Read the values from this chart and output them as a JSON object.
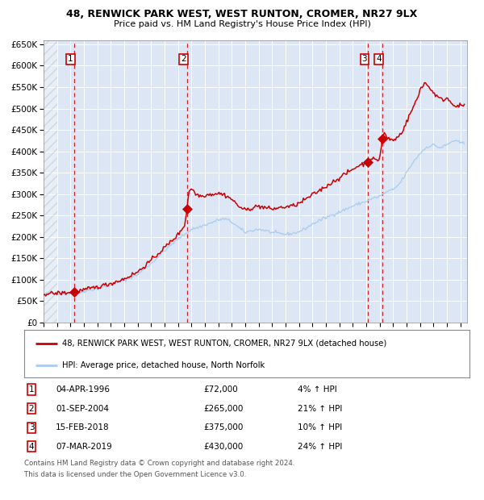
{
  "title": "48, RENWICK PARK WEST, WEST RUNTON, CROMER, NR27 9LX",
  "subtitle": "Price paid vs. HM Land Registry's House Price Index (HPI)",
  "legend_property": "48, RENWICK PARK WEST, WEST RUNTON, CROMER, NR27 9LX (detached house)",
  "legend_hpi": "HPI: Average price, detached house, North Norfolk",
  "footnote1": "Contains HM Land Registry data © Crown copyright and database right 2024.",
  "footnote2": "This data is licensed under the Open Government Licence v3.0.",
  "sales": [
    {
      "num": 1,
      "date": "04-APR-1996",
      "price": 72000,
      "pct": "4%",
      "date_float": 1996.26
    },
    {
      "num": 2,
      "date": "01-SEP-2004",
      "price": 265000,
      "pct": "21%",
      "date_float": 2004.67
    },
    {
      "num": 3,
      "date": "15-FEB-2018",
      "price": 375000,
      "pct": "10%",
      "date_float": 2018.12
    },
    {
      "num": 4,
      "date": "07-MAR-2019",
      "price": 430000,
      "pct": "24%",
      "date_float": 2019.18
    }
  ],
  "ylim": [
    0,
    660000
  ],
  "xlim_start": 1994.0,
  "xlim_end": 2025.5,
  "background_color": "#dce6f5",
  "grid_color": "#ffffff",
  "property_line_color": "#cc0000",
  "hpi_line_color": "#aaccee",
  "vline_color": "#cc0000",
  "sale_marker_color": "#cc0000",
  "label_box_color": "#cc0000",
  "ytick_labels": [
    "£0",
    "£50K",
    "£100K",
    "£150K",
    "£200K",
    "£250K",
    "£300K",
    "£350K",
    "£400K",
    "£450K",
    "£500K",
    "£550K",
    "£600K",
    "£650K"
  ],
  "ytick_values": [
    0,
    50000,
    100000,
    150000,
    200000,
    250000,
    300000,
    350000,
    400000,
    450000,
    500000,
    550000,
    600000,
    650000
  ]
}
